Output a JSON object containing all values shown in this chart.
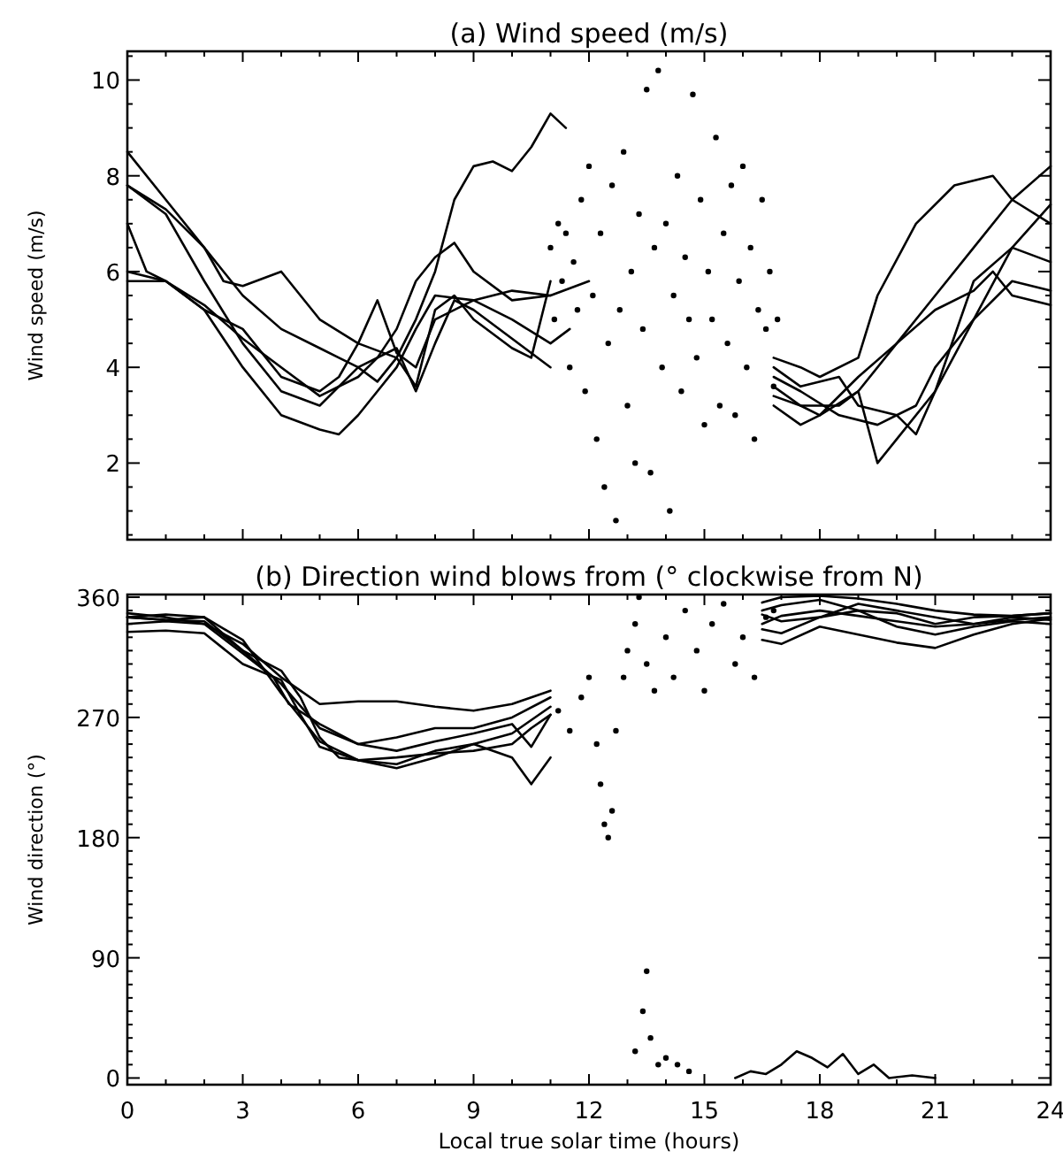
{
  "chart_data": [
    {
      "type": "line",
      "title": "(a) Wind speed (m/s)",
      "ylabel": "Wind speed (m/s)",
      "xlim": [
        0,
        24
      ],
      "ylim": [
        0.4,
        10.6
      ],
      "tick_labels": "y",
      "xticks": [
        0,
        {
          "value": 1,
          "label": null
        },
        {
          "value": 2,
          "label": null
        },
        3,
        {
          "value": 4,
          "label": null
        },
        {
          "value": 5,
          "label": null
        },
        6,
        {
          "value": 7,
          "label": null
        },
        {
          "value": 8,
          "label": null
        },
        9,
        {
          "value": 10,
          "label": null
        },
        {
          "value": 11,
          "label": null
        },
        12,
        {
          "value": 13,
          "label": null
        },
        {
          "value": 14,
          "label": null
        },
        15,
        {
          "value": 16,
          "label": null
        },
        {
          "value": 17,
          "label": null
        },
        18,
        {
          "value": 19,
          "label": null
        },
        {
          "value": 20,
          "label": null
        },
        21,
        {
          "value": 22,
          "label": null
        },
        {
          "value": 23,
          "label": null
        },
        24
      ],
      "yticks": [
        {
          "value": 0.5,
          "label": null
        },
        {
          "value": 1,
          "label": null
        },
        {
          "value": 1.5,
          "label": null
        },
        2,
        {
          "value": 2.5,
          "label": null
        },
        {
          "value": 3,
          "label": null
        },
        {
          "value": 3.5,
          "label": null
        },
        4,
        {
          "value": 4.5,
          "label": null
        },
        {
          "value": 5,
          "label": null
        },
        {
          "value": 5.5,
          "label": null
        },
        6,
        {
          "value": 6.5,
          "label": null
        },
        {
          "value": 7,
          "label": null
        },
        {
          "value": 7.5,
          "label": null
        },
        8,
        {
          "value": 8.5,
          "label": null
        },
        {
          "value": 9,
          "label": null
        },
        {
          "value": 9.5,
          "label": null
        },
        10,
        {
          "value": 10.5,
          "label": null
        }
      ],
      "series": [
        {
          "color": "#000000",
          "x": [
            0,
            1,
            2,
            3,
            4,
            5,
            5.5,
            6,
            6.5,
            7,
            7.5,
            8,
            8.5,
            9,
            9.5,
            10,
            10.5,
            11,
            11.4,
            14,
            16.8,
            17.5,
            18,
            19,
            19.5,
            20.5,
            21.5,
            22.5,
            23,
            24
          ],
          "values": [
            8.5,
            7.5,
            6.5,
            5.5,
            4.8,
            4.4,
            4.2,
            4.0,
            3.7,
            4.2,
            5.0,
            6.0,
            7.5,
            8.2,
            8.3,
            8.1,
            8.6,
            9.3,
            9.0,
            null,
            4.2,
            4.0,
            3.8,
            4.2,
            5.5,
            7.0,
            7.8,
            8.0,
            7.5,
            7.0
          ]
        },
        {
          "color": "#000000",
          "x": [
            0,
            1,
            2,
            3,
            4,
            5,
            6,
            6.5,
            7,
            7.5,
            8,
            8.5,
            9,
            10,
            11,
            12,
            14,
            16.8,
            17.5,
            18,
            19,
            20,
            21,
            22,
            23,
            24
          ],
          "values": [
            6.0,
            5.8,
            5.3,
            4.6,
            4.0,
            3.4,
            3.8,
            4.2,
            4.8,
            5.8,
            6.3,
            6.6,
            6.0,
            5.4,
            5.5,
            5.8,
            null,
            3.6,
            3.2,
            3.0,
            3.5,
            4.5,
            5.5,
            6.5,
            7.5,
            8.2
          ]
        },
        {
          "color": "#000000",
          "x": [
            0,
            0.5,
            1,
            2,
            3,
            4,
            5,
            5.5,
            6,
            6.5,
            7,
            7.5,
            8,
            9,
            10,
            11,
            11.5,
            14,
            16.8,
            17.5,
            18.5,
            19.5,
            20.5,
            21,
            22,
            23,
            24
          ],
          "values": [
            7.0,
            6.0,
            5.8,
            5.2,
            4.0,
            3.0,
            2.7,
            2.6,
            3.0,
            3.5,
            4.0,
            4.8,
            5.5,
            5.4,
            5.0,
            4.5,
            4.8,
            null,
            3.8,
            3.5,
            3.0,
            2.8,
            3.2,
            4.0,
            5.0,
            6.5,
            7.4
          ]
        },
        {
          "color": "#000000",
          "x": [
            0,
            1,
            2,
            2.5,
            3,
            4,
            5,
            6,
            6.5,
            7,
            7.5,
            8,
            9,
            10,
            11,
            14,
            16.8,
            17.5,
            18.5,
            19,
            19.5,
            20,
            21,
            22,
            23,
            24
          ],
          "values": [
            7.8,
            7.3,
            6.5,
            5.8,
            5.7,
            6.0,
            5.0,
            4.5,
            5.4,
            4.3,
            4.0,
            5.0,
            5.4,
            5.6,
            5.5,
            null,
            3.4,
            3.2,
            3.2,
            3.5,
            2.0,
            2.5,
            3.5,
            5.0,
            5.8,
            5.6
          ]
        },
        {
          "color": "#000000",
          "x": [
            0,
            1,
            2,
            3,
            4,
            5,
            6,
            7,
            7.5,
            8,
            8.5,
            9,
            10,
            11,
            14,
            16.8,
            17.5,
            18,
            19,
            20,
            21,
            22,
            22.5,
            23,
            24
          ],
          "values": [
            7.8,
            7.2,
            5.8,
            4.5,
            3.5,
            3.2,
            4.0,
            4.4,
            3.5,
            4.5,
            5.4,
            5.2,
            4.6,
            4.0,
            null,
            3.2,
            2.8,
            3.0,
            3.8,
            4.5,
            5.2,
            5.6,
            6.0,
            5.5,
            5.3
          ]
        },
        {
          "color": "#000000",
          "x": [
            0,
            1,
            2,
            3,
            4,
            5,
            5.5,
            6,
            7,
            7.5,
            8,
            8.5,
            9,
            10,
            10.5,
            11,
            14,
            16.8,
            17.5,
            18.5,
            19,
            20,
            20.5,
            21,
            22,
            23,
            24
          ],
          "values": [
            5.8,
            5.8,
            5.2,
            4.8,
            3.8,
            3.5,
            3.8,
            4.5,
            4.2,
            3.6,
            5.2,
            5.5,
            5.0,
            4.4,
            4.2,
            5.8,
            null,
            4.0,
            3.6,
            3.8,
            3.2,
            3.0,
            2.6,
            3.5,
            5.8,
            6.5,
            6.2
          ]
        },
        {
          "type": "scatter",
          "color": "#000000",
          "x": [
            11.0,
            11.1,
            11.2,
            11.3,
            11.4,
            11.5,
            11.6,
            11.7,
            11.8,
            11.9,
            12.0,
            12.1,
            12.2,
            12.3,
            12.4,
            12.5,
            12.6,
            12.7,
            12.8,
            12.9,
            13.0,
            13.1,
            13.2,
            13.3,
            13.4,
            13.5,
            13.6,
            13.7,
            13.8,
            13.9,
            14.0,
            14.1,
            14.2,
            14.3,
            14.4,
            14.5,
            14.6,
            14.7,
            14.8,
            14.9,
            15.0,
            15.1,
            15.2,
            15.3,
            15.4,
            15.5,
            15.6,
            15.7,
            15.8,
            15.9,
            16.0,
            16.1,
            16.2,
            16.3,
            16.4,
            16.5,
            16.6,
            16.7,
            16.8,
            16.9
          ],
          "values": [
            6.5,
            5.0,
            7.0,
            5.8,
            6.8,
            4.0,
            6.2,
            5.2,
            7.5,
            3.5,
            8.2,
            5.5,
            2.5,
            6.8,
            1.5,
            4.5,
            7.8,
            0.8,
            5.2,
            8.5,
            3.2,
            6.0,
            2.0,
            7.2,
            4.8,
            9.8,
            1.8,
            6.5,
            10.2,
            4.0,
            7.0,
            1.0,
            5.5,
            8.0,
            3.5,
            6.3,
            5.0,
            9.7,
            4.2,
            7.5,
            2.8,
            6.0,
            5.0,
            8.8,
            3.2,
            6.8,
            4.5,
            7.8,
            3.0,
            5.8,
            8.2,
            4.0,
            6.5,
            2.5,
            5.2,
            7.5,
            4.8,
            6.0,
            3.6,
            5.0
          ]
        }
      ]
    },
    {
      "type": "line",
      "title": "(b) Direction wind blows from (° clockwise from N)",
      "ylabel": "Wind direction (°)",
      "xlabel": "Local true solar time (hours)",
      "xlim": [
        0,
        24
      ],
      "ylim": [
        -5,
        362
      ],
      "xticks": [
        0,
        {
          "value": 1,
          "label": null
        },
        {
          "value": 2,
          "label": null
        },
        3,
        {
          "value": 4,
          "label": null
        },
        {
          "value": 5,
          "label": null
        },
        6,
        {
          "value": 7,
          "label": null
        },
        {
          "value": 8,
          "label": null
        },
        9,
        {
          "value": 10,
          "label": null
        },
        {
          "value": 11,
          "label": null
        },
        12,
        {
          "value": 13,
          "label": null
        },
        {
          "value": 14,
          "label": null
        },
        15,
        {
          "value": 16,
          "label": null
        },
        {
          "value": 17,
          "label": null
        },
        18,
        {
          "value": 19,
          "label": null
        },
        {
          "value": 20,
          "label": null
        },
        21,
        {
          "value": 22,
          "label": null
        },
        {
          "value": 23,
          "label": null
        },
        24
      ],
      "yticks": [
        0,
        {
          "value": 10,
          "label": null
        },
        {
          "value": 20,
          "label": null
        },
        {
          "value": 30,
          "label": null
        },
        {
          "value": 40,
          "label": null
        },
        {
          "value": 50,
          "label": null
        },
        {
          "value": 60,
          "label": null
        },
        {
          "value": 70,
          "label": null
        },
        {
          "value": 80,
          "label": null
        },
        90,
        {
          "value": 100,
          "label": null
        },
        {
          "value": 110,
          "label": null
        },
        {
          "value": 120,
          "label": null
        },
        {
          "value": 130,
          "label": null
        },
        {
          "value": 140,
          "label": null
        },
        {
          "value": 150,
          "label": null
        },
        {
          "value": 160,
          "label": null
        },
        {
          "value": 170,
          "label": null
        },
        180,
        {
          "value": 190,
          "label": null
        },
        {
          "value": 200,
          "label": null
        },
        {
          "value": 210,
          "label": null
        },
        {
          "value": 220,
          "label": null
        },
        {
          "value": 230,
          "label": null
        },
        {
          "value": 240,
          "label": null
        },
        {
          "value": 250,
          "label": null
        },
        {
          "value": 260,
          "label": null
        },
        270,
        {
          "value": 280,
          "label": null
        },
        {
          "value": 290,
          "label": null
        },
        {
          "value": 300,
          "label": null
        },
        {
          "value": 310,
          "label": null
        },
        {
          "value": 320,
          "label": null
        },
        {
          "value": 330,
          "label": null
        },
        {
          "value": 340,
          "label": null
        },
        {
          "value": 350,
          "label": null
        },
        360
      ],
      "series": [
        {
          "color": "#000000",
          "x": [
            0,
            1,
            2,
            3,
            4,
            4.5,
            5,
            5.5,
            6,
            7,
            8,
            9,
            10,
            10.5,
            11,
            14,
            16.5,
            17,
            18,
            19,
            20,
            21,
            22,
            23,
            24
          ],
          "values": [
            345,
            343,
            342,
            320,
            305,
            285,
            255,
            240,
            238,
            240,
            243,
            245,
            250,
            262,
            272,
            null,
            340,
            346,
            350,
            346,
            342,
            338,
            340,
            345,
            343
          ]
        },
        {
          "color": "#000000",
          "x": [
            0,
            1,
            2,
            3,
            3.8,
            4.2,
            5,
            6,
            7,
            8,
            9,
            10,
            10.5,
            11,
            14,
            16.5,
            17,
            18,
            19,
            20,
            21,
            22,
            23,
            24
          ],
          "values": [
            340,
            342,
            340,
            318,
            300,
            280,
            265,
            250,
            245,
            252,
            258,
            265,
            248,
            272,
            null,
            347,
            342,
            345,
            355,
            350,
            345,
            340,
            343,
            345
          ]
        },
        {
          "color": "#000000",
          "x": [
            0,
            1,
            2,
            3,
            4,
            4.5,
            5,
            6,
            7,
            8,
            9,
            10,
            11,
            14,
            16.5,
            17,
            18,
            19,
            20,
            21,
            22,
            23,
            24
          ],
          "values": [
            348,
            345,
            340,
            325,
            300,
            290,
            280,
            282,
            282,
            278,
            275,
            280,
            290,
            null,
            350,
            354,
            358,
            350,
            338,
            332,
            338,
            342,
            340
          ]
        },
        {
          "color": "#000000",
          "x": [
            0,
            1,
            2,
            3,
            4,
            5,
            6,
            7,
            8,
            9,
            10,
            10.5,
            11,
            14,
            16.5,
            17,
            18,
            19,
            20,
            21,
            22,
            23,
            24
          ],
          "values": [
            345,
            343,
            345,
            328,
            288,
            252,
            238,
            235,
            245,
            250,
            240,
            220,
            240,
            null,
            336,
            333,
            345,
            350,
            348,
            340,
            345,
            346,
            348
          ]
        },
        {
          "color": "#000000",
          "x": [
            0,
            1,
            2,
            3,
            4,
            4.5,
            5,
            6,
            7,
            8,
            9,
            10,
            11,
            14,
            16.5,
            17,
            18,
            19,
            20,
            21,
            22,
            23,
            24
          ],
          "values": [
            334,
            335,
            333,
            310,
            298,
            272,
            248,
            238,
            232,
            240,
            250,
            258,
            278,
            null,
            328,
            325,
            338,
            332,
            326,
            322,
            332,
            340,
            344
          ]
        },
        {
          "color": "#000000",
          "x": [
            0,
            1,
            2,
            3,
            4,
            5,
            6,
            7,
            8,
            9,
            10,
            11,
            14,
            16.5,
            17,
            18,
            19,
            20,
            21,
            22,
            23,
            24
          ],
          "values": [
            345,
            347,
            345,
            320,
            295,
            262,
            250,
            255,
            262,
            262,
            270,
            285,
            null,
            356,
            360,
            361,
            359,
            355,
            350,
            347,
            346,
            348
          ]
        },
        {
          "color": "#000000",
          "x": [
            15.8,
            16.2,
            16.6,
            17,
            17.4,
            17.8,
            18.2,
            18.6,
            19,
            19.4,
            19.8,
            20.4,
            21
          ],
          "values": [
            0,
            5,
            3,
            10,
            20,
            15,
            8,
            18,
            3,
            10,
            0,
            2,
            0
          ]
        },
        {
          "type": "scatter",
          "color": "#000000",
          "x": [
            11.2,
            11.5,
            11.8,
            12.0,
            12.2,
            12.3,
            12.4,
            12.5,
            12.6,
            12.7,
            12.9,
            13.0,
            13.2,
            13.3,
            13.5,
            13.7,
            14.0,
            14.2,
            14.5,
            14.8,
            15.0,
            15.2,
            15.5,
            15.8,
            16.0,
            16.3,
            16.6,
            16.8,
            13.2,
            13.4,
            13.5,
            13.6,
            13.8,
            14.0,
            14.3,
            14.6
          ],
          "values": [
            275,
            260,
            285,
            300,
            250,
            220,
            190,
            180,
            200,
            260,
            300,
            320,
            340,
            360,
            310,
            290,
            330,
            300,
            350,
            320,
            290,
            340,
            355,
            310,
            330,
            300,
            345,
            350,
            20,
            50,
            80,
            30,
            10,
            15,
            10,
            5
          ]
        }
      ]
    }
  ]
}
